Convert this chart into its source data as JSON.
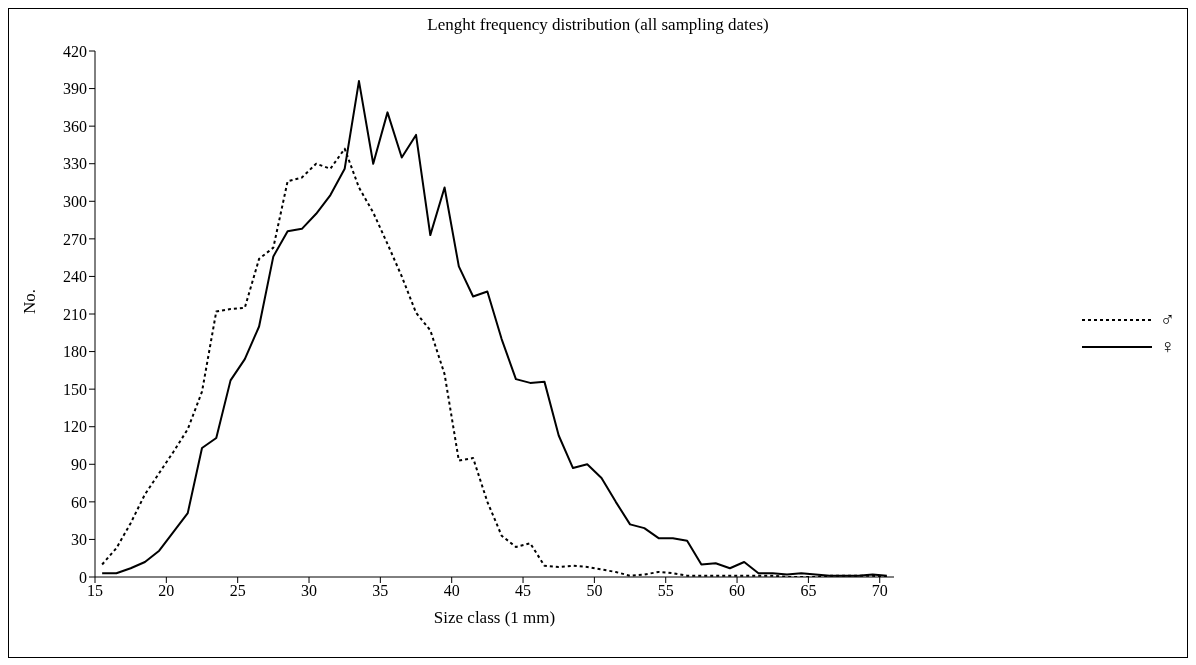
{
  "chart_data": {
    "type": "line",
    "title": "Lenght frequency distribution (all sampling dates)",
    "xlabel": "Size class (1 mm)",
    "ylabel": "No.",
    "x": [
      15.5,
      16.5,
      17.5,
      18.5,
      19.5,
      20.5,
      21.5,
      22.5,
      23.5,
      24.5,
      25.5,
      26.5,
      27.5,
      28.5,
      29.5,
      30.5,
      31.5,
      32.5,
      33.5,
      34.5,
      35.5,
      36.5,
      37.5,
      38.5,
      39.5,
      40.5,
      41.5,
      42.5,
      43.5,
      44.5,
      45.5,
      46.5,
      47.5,
      48.5,
      49.5,
      50.5,
      51.5,
      52.5,
      53.5,
      54.5,
      55.5,
      56.5,
      57.5,
      58.5,
      59.5,
      60.5,
      61.5,
      62.5,
      63.5,
      64.5,
      65.5,
      66.5,
      67.5,
      68.5,
      69.5,
      70.5
    ],
    "series": [
      {
        "name": "♂",
        "color": "#000000",
        "line_style": "dotted",
        "values": [
          10,
          23,
          43,
          66,
          83,
          100,
          118,
          148,
          212,
          214,
          215,
          254,
          263,
          316,
          319,
          330,
          326,
          342,
          311,
          291,
          266,
          240,
          211,
          197,
          162,
          93,
          95,
          60,
          33,
          24,
          27,
          9,
          8,
          9,
          8,
          6,
          4,
          1,
          2,
          4,
          3,
          1,
          1,
          1,
          1,
          1,
          1,
          1,
          0,
          0,
          0,
          1,
          1,
          1,
          1,
          0
        ]
      },
      {
        "name": "♀",
        "color": "#000000",
        "line_style": "solid",
        "values": [
          3,
          3,
          7,
          12,
          21,
          36,
          51,
          103,
          111,
          157,
          174,
          200,
          256,
          276,
          278,
          290,
          305,
          326,
          396,
          330,
          371,
          335,
          353,
          273,
          311,
          248,
          224,
          228,
          190,
          158,
          155,
          156,
          113,
          87,
          90,
          79,
          60,
          42,
          39,
          31,
          31,
          29,
          10,
          11,
          7,
          12,
          3,
          3,
          2,
          3,
          2,
          1,
          1,
          1,
          2,
          1
        ]
      }
    ],
    "xlim": [
      15,
      71
    ],
    "xticks": [
      15,
      20,
      25,
      30,
      35,
      40,
      45,
      50,
      55,
      60,
      65,
      70
    ],
    "ylim": [
      0,
      420
    ],
    "yticks": [
      0,
      30,
      60,
      90,
      120,
      150,
      180,
      210,
      240,
      270,
      300,
      330,
      360,
      390,
      420
    ],
    "grid": false,
    "legend": "right",
    "marker": "none"
  }
}
